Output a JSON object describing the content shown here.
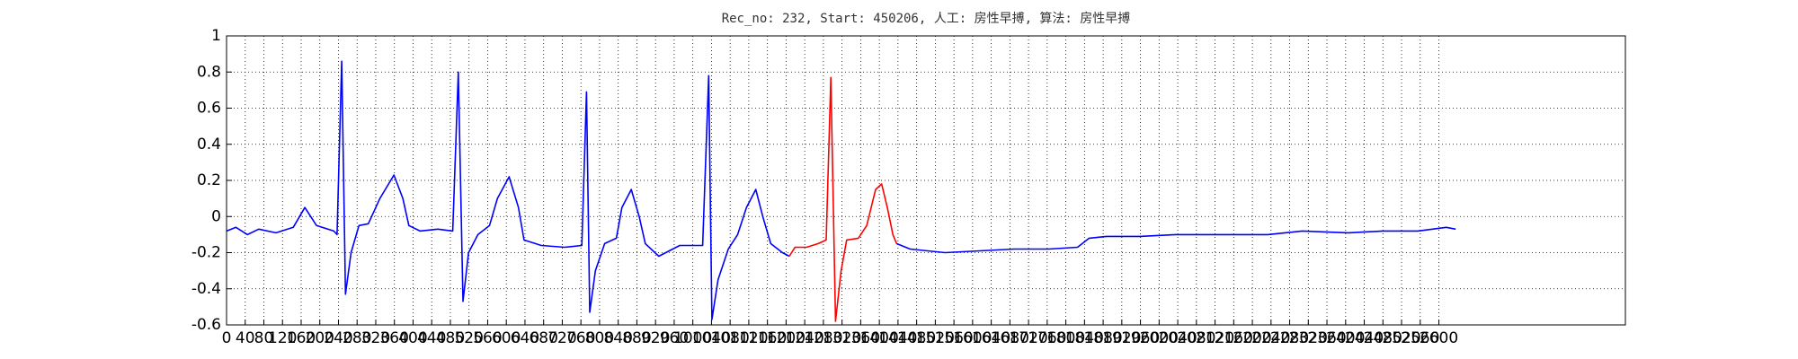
{
  "chart_data": {
    "type": "line",
    "title": "Rec_no: 232, Start: 450206, 人工: 房性早搏, 算法: 房性早搏",
    "xlim": [
      0,
      3000
    ],
    "xticks": [
      0,
      40,
      80,
      120,
      160,
      200,
      240,
      280,
      320,
      360,
      400,
      440,
      480,
      520,
      560,
      600,
      640,
      680,
      720,
      760,
      800,
      840,
      880,
      920,
      960,
      1000,
      1040,
      1080,
      1120,
      1160,
      1200,
      1240,
      1280,
      1320,
      1360,
      1400,
      1440,
      1480,
      1520,
      1560,
      1600,
      1640,
      1680,
      1720,
      1760,
      1800,
      1840,
      1880,
      1920,
      1960,
      2000,
      2040,
      2080,
      2120,
      2160,
      2200,
      2240,
      2280,
      2320,
      2360,
      2400,
      2440,
      2480,
      2520,
      2560,
      2600
    ],
    "ylim": [
      -0.6,
      1.0
    ],
    "yticks": [
      -0.6,
      -0.4,
      -0.2,
      0.0,
      0.2,
      0.4,
      0.6,
      0.8,
      1.0
    ],
    "grid": true,
    "series": [
      {
        "color": "#0000ff",
        "x": [
          0,
          20,
          45,
          69,
          106,
          143,
          168,
          193,
          230,
          237,
          247,
          255,
          267,
          284,
          304,
          329,
          359,
          378,
          391,
          415,
          453,
          485,
          497,
          507,
          519,
          539,
          564,
          581,
          606,
          626,
          638,
          675,
          725,
          762,
          772,
          779,
          791,
          811,
          836,
          848,
          868,
          885,
          898,
          927,
          972,
          1021,
          1034,
          1041,
          1054,
          1076,
          1096,
          1115,
          1135,
          1150,
          1167,
          1192,
          1207,
          1300,
          1437,
          1466,
          1541,
          1615,
          1689,
          1763,
          1825,
          1850,
          1887,
          1961,
          2035,
          2134,
          2233,
          2307,
          2406,
          2480,
          2555,
          2616,
          2636
        ],
        "values": [
          -0.08,
          -0.06,
          -0.1,
          -0.07,
          -0.09,
          -0.06,
          0.05,
          -0.05,
          -0.08,
          -0.1,
          0.86,
          -0.43,
          -0.2,
          -0.05,
          -0.04,
          0.1,
          0.23,
          0.1,
          -0.05,
          -0.08,
          -0.07,
          -0.08,
          0.8,
          -0.47,
          -0.2,
          -0.1,
          -0.05,
          0.1,
          0.22,
          0.05,
          -0.13,
          -0.16,
          -0.17,
          -0.16,
          0.69,
          -0.53,
          -0.3,
          -0.15,
          -0.12,
          0.05,
          0.15,
          0.0,
          -0.15,
          -0.22,
          -0.16,
          -0.16,
          0.78,
          -0.57,
          -0.35,
          -0.18,
          -0.1,
          0.05,
          0.15,
          0.0,
          -0.15,
          -0.2,
          -0.22,
          null,
          -0.15,
          -0.18,
          -0.2,
          -0.19,
          -0.18,
          -0.18,
          -0.17,
          -0.12,
          -0.11,
          -0.11,
          -0.1,
          -0.1,
          -0.1,
          -0.08,
          -0.09,
          -0.08,
          -0.08,
          -0.06,
          -0.07
        ]
      },
      {
        "color": "#ff0000",
        "x": [
          1207,
          1219,
          1244,
          1269,
          1286,
          1296,
          1306,
          1318,
          1330,
          1355,
          1373,
          1392,
          1405,
          1417,
          1429,
          1437
        ],
        "values": [
          -0.22,
          -0.17,
          -0.17,
          -0.15,
          -0.13,
          0.77,
          -0.58,
          -0.3,
          -0.13,
          -0.12,
          -0.05,
          0.15,
          0.18,
          0.05,
          -0.1,
          -0.15
        ]
      }
    ]
  }
}
